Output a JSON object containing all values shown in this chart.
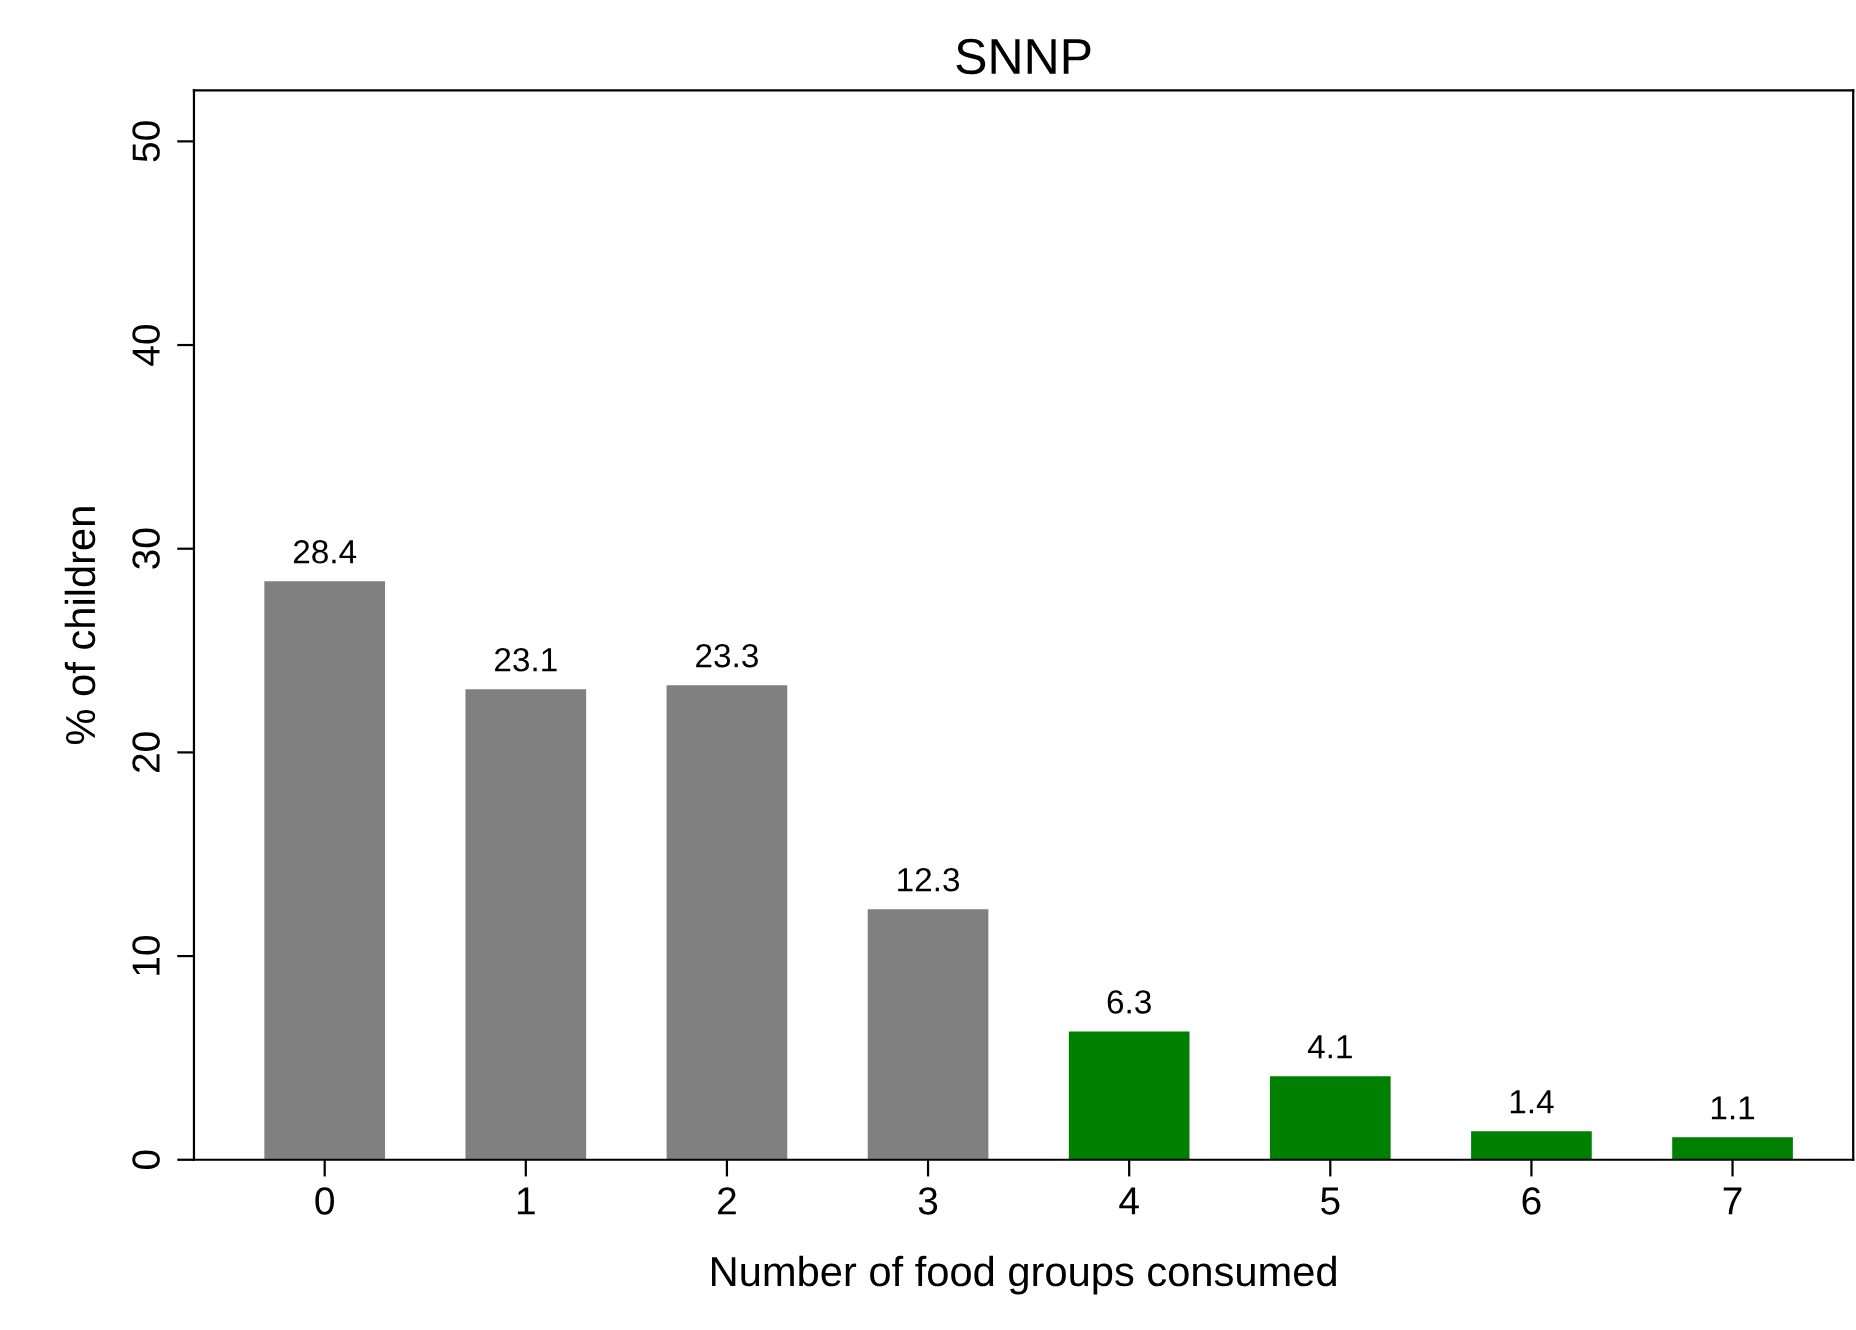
{
  "chart_data": {
    "type": "bar",
    "title": "SNNP",
    "xlabel": "Number of food groups consumed",
    "ylabel": "% of children",
    "categories": [
      "0",
      "1",
      "2",
      "3",
      "4",
      "5",
      "6",
      "7"
    ],
    "values": [
      28.4,
      23.1,
      23.3,
      12.3,
      6.3,
      4.1,
      1.4,
      1.1
    ],
    "colors": [
      "#808080",
      "#808080",
      "#808080",
      "#808080",
      "#008000",
      "#008000",
      "#008000",
      "#008000"
    ],
    "ylim": [
      0,
      52.5
    ],
    "yticks": [
      0,
      10,
      20,
      30,
      40,
      50
    ],
    "grid": false,
    "data_labels": true
  }
}
